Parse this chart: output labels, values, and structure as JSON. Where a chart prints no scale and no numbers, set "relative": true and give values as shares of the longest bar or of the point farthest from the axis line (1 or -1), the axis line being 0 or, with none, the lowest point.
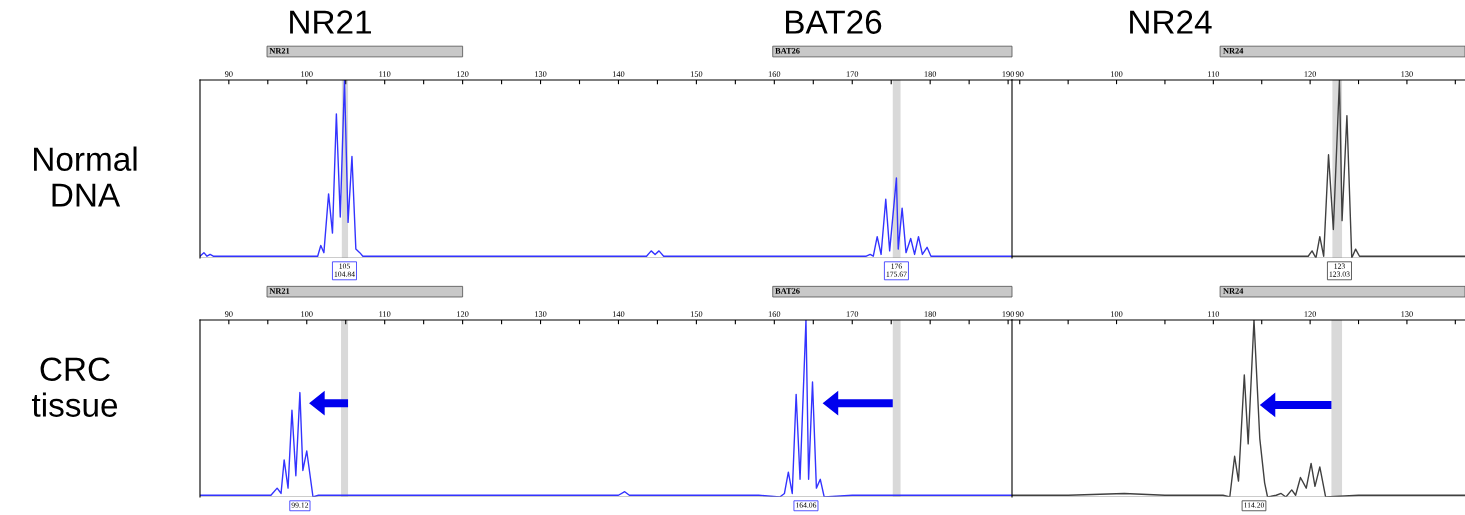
{
  "chart_data": [
    {
      "type": "line",
      "relative": true,
      "annotations": [
        "NR21",
        "BAT26",
        "Normal DNA",
        "NR21",
        "BAT26",
        "105\n104.84",
        "176\n175.67"
      ],
      "xlim": [
        86.3,
        190.5
      ],
      "xticks": [
        90,
        {
          "value": 95,
          "label": null
        },
        100,
        {
          "value": 105,
          "label": null
        },
        110,
        {
          "value": 115,
          "label": null
        },
        120,
        {
          "value": 125,
          "label": null
        },
        130,
        {
          "value": 135,
          "label": null
        },
        140,
        {
          "value": 145,
          "label": null
        },
        150,
        {
          "value": 155,
          "label": null
        },
        160,
        {
          "value": 165,
          "label": null
        },
        170,
        {
          "value": 175,
          "label": null
        },
        180,
        {
          "value": 185,
          "label": null
        },
        190
      ],
      "bands": [
        {
          "axis": "x",
          "from": 104.5,
          "to": 105.3,
          "color": "#d9d9d9"
        },
        {
          "axis": "x",
          "from": 175.2,
          "to": 176.2,
          "color": "#d9d9d9"
        }
      ],
      "series": [
        {
          "color": "#3333ff",
          "x": [
            86.3,
            86.8,
            87.2,
            87.6,
            88.0,
            90,
            95,
            100,
            101.4,
            101.8,
            102.2,
            102.8,
            103.3,
            103.8,
            104.3,
            104.84,
            105.3,
            105.8,
            106.3,
            106.8,
            107.2,
            110,
            120,
            130,
            140,
            143.6,
            144.2,
            144.7,
            145.2,
            145.8,
            150,
            160,
            170,
            171.8,
            172.3,
            172.7,
            173.2,
            173.7,
            174.3,
            174.8,
            175.67,
            175.9,
            176.4,
            176.9,
            177.5,
            178.0,
            178.5,
            179.0,
            179.6,
            180.1,
            182,
            186,
            190.5
          ],
          "values": [
            0.01,
            0.03,
            0.01,
            0.02,
            0.01,
            0.01,
            0.01,
            0.01,
            0.01,
            0.07,
            0.03,
            0.36,
            0.14,
            0.81,
            0.23,
            1.0,
            0.2,
            0.57,
            0.05,
            0.03,
            0.01,
            0.01,
            0.01,
            0.01,
            0.01,
            0.01,
            0.04,
            0.02,
            0.04,
            0.01,
            0.01,
            0.01,
            0.01,
            0.01,
            0.02,
            0.01,
            0.12,
            0.02,
            0.33,
            0.04,
            0.45,
            0.05,
            0.28,
            0.03,
            0.11,
            0.02,
            0.12,
            0.02,
            0.06,
            0.01,
            0.01,
            0.01,
            0.01
          ]
        }
      ]
    },
    {
      "type": "line",
      "relative": true,
      "annotations": [
        "NR24",
        "NR24",
        "123\n123.03"
      ],
      "xlim": [
        89.2,
        136.0
      ],
      "xticks": [
        90,
        {
          "value": 95,
          "label": null
        },
        100,
        {
          "value": 105,
          "label": null
        },
        110,
        {
          "value": 115,
          "label": null
        },
        120,
        {
          "value": 125,
          "label": null
        },
        130,
        {
          "value": 135,
          "label": null
        }
      ],
      "bands": [
        {
          "axis": "x",
          "from": 122.3,
          "to": 123.3,
          "color": "#d9d9d9"
        }
      ],
      "series": [
        {
          "color": "#404040",
          "x": [
            89.2,
            95,
            100,
            105,
            110,
            115,
            119.8,
            120.2,
            120.6,
            121.0,
            121.4,
            121.9,
            122.4,
            123.03,
            123.3,
            123.8,
            124.3,
            124.7,
            125.1,
            128,
            132,
            136.0
          ],
          "values": [
            0.01,
            0.01,
            0.01,
            0.01,
            0.01,
            0.01,
            0.01,
            0.04,
            0.0,
            0.12,
            0.01,
            0.58,
            0.16,
            1.0,
            0.21,
            0.8,
            0.0,
            0.05,
            0.01,
            0.01,
            0.01,
            0.01
          ]
        }
      ]
    },
    {
      "type": "line",
      "relative": true,
      "annotations": [
        "CRC tissue",
        "NR21",
        "BAT26",
        "99.12",
        "164.06"
      ],
      "xlim": [
        86.3,
        190.5
      ],
      "xticks": [
        90,
        {
          "value": 95,
          "label": null
        },
        100,
        {
          "value": 105,
          "label": null
        },
        110,
        {
          "value": 115,
          "label": null
        },
        120,
        {
          "value": 125,
          "label": null
        },
        130,
        {
          "value": 135,
          "label": null
        },
        140,
        {
          "value": 145,
          "label": null
        },
        150,
        {
          "value": 155,
          "label": null
        },
        160,
        {
          "value": 165,
          "label": null
        },
        170,
        {
          "value": 175,
          "label": null
        },
        180,
        {
          "value": 185,
          "label": null
        },
        190
      ],
      "bands": [
        {
          "axis": "x",
          "from": 104.4,
          "to": 105.3,
          "color": "#d9d9d9"
        },
        {
          "axis": "x",
          "from": 175.2,
          "to": 176.2,
          "color": "#d9d9d9"
        }
      ],
      "series": [
        {
          "color": "#3333ff",
          "x": [
            86.3,
            90,
            94.0,
            94.6,
            95.4,
            96.2,
            96.7,
            97.1,
            97.6,
            98.1,
            98.6,
            99.12,
            99.5,
            100.0,
            100.8,
            101.5,
            110,
            120,
            130,
            140,
            140.8,
            141.4,
            150,
            158,
            160.7,
            161.3,
            161.8,
            162.3,
            162.8,
            163.3,
            164.06,
            164.4,
            164.9,
            165.4,
            165.9,
            166.4,
            170,
            180,
            190.5
          ],
          "values": [
            0.01,
            0.01,
            0.01,
            0.01,
            0.01,
            0.05,
            0.02,
            0.21,
            0.05,
            0.49,
            0.12,
            0.59,
            0.15,
            0.26,
            0.0,
            0.01,
            0.01,
            0.01,
            0.01,
            0.01,
            0.03,
            0.01,
            0.01,
            0.01,
            0.0,
            0.02,
            0.14,
            0.02,
            0.58,
            0.1,
            1.0,
            0.1,
            0.65,
            0.05,
            0.1,
            0.0,
            0.01,
            0.01,
            0.01
          ]
        }
      ]
    },
    {
      "type": "line",
      "relative": true,
      "annotations": [
        "NR24",
        "114.20"
      ],
      "xlim": [
        89.2,
        136.0
      ],
      "xticks": [
        90,
        {
          "value": 95,
          "label": null
        },
        100,
        {
          "value": 105,
          "label": null
        },
        110,
        {
          "value": 115,
          "label": null
        },
        120,
        {
          "value": 125,
          "label": null
        },
        130,
        {
          "value": 135,
          "label": null
        }
      ],
      "bands": [
        {
          "axis": "x",
          "from": 122.2,
          "to": 123.3,
          "color": "#d9d9d9"
        }
      ],
      "series": [
        {
          "color": "#404040",
          "x": [
            89.2,
            95,
            100.8,
            105,
            111.0,
            111.7,
            112.2,
            112.6,
            113.2,
            113.6,
            114.2,
            114.8,
            115.3,
            115.6,
            116.5,
            117.0,
            117.5,
            118.1,
            118.5,
            119.0,
            119.6,
            120.1,
            120.5,
            121.0,
            121.6,
            125,
            130,
            136.0
          ],
          "values": [
            0.01,
            0.01,
            0.02,
            0.01,
            0.01,
            0.0,
            0.23,
            0.09,
            0.69,
            0.3,
            1.0,
            0.33,
            0.08,
            0.0,
            0.01,
            0.02,
            0.0,
            0.04,
            0.01,
            0.11,
            0.05,
            0.19,
            0.06,
            0.17,
            0.0,
            0.01,
            0.01,
            0.01
          ]
        }
      ]
    }
  ]
}
